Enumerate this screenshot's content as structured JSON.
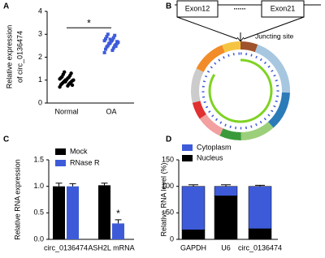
{
  "chart_data": [
    {
      "panel": "A",
      "type": "strip",
      "ylabel": [
        "Relative expression",
        "of circ_0136474"
      ],
      "categories": [
        "Normal",
        "OA"
      ],
      "colors": [
        "#000000",
        "#3d5bd9"
      ],
      "values": [
        [
          0.7,
          0.75,
          0.8,
          0.82,
          0.85,
          0.88,
          0.9,
          0.92,
          0.95,
          0.97,
          1.0,
          1.0,
          1.02,
          1.05,
          1.08,
          1.1,
          1.12,
          1.15,
          1.2,
          1.25,
          1.3,
          1.35,
          0.78,
          0.93
        ],
        [
          2.2,
          2.3,
          2.35,
          2.4,
          2.45,
          2.5,
          2.5,
          2.55,
          2.6,
          2.6,
          2.62,
          2.65,
          2.7,
          2.72,
          2.75,
          2.8,
          2.85,
          2.9,
          2.95,
          3.0,
          2.48,
          2.58,
          2.68,
          2.78
        ]
      ],
      "significance": "*",
      "ylim": [
        0,
        4
      ],
      "yticks": [
        0,
        1,
        2,
        3,
        4
      ]
    },
    {
      "panel": "C",
      "type": "grouped_bar",
      "ylabel": "Relative RNA expression",
      "categories": [
        "circ_0136474",
        "ASH2L mRNA"
      ],
      "series": [
        {
          "name": "Mock",
          "color": "#000000",
          "values": [
            1.0,
            1.02
          ],
          "errors": [
            0.06,
            0.04
          ]
        },
        {
          "name": "RNase R",
          "color": "#3d5bd9",
          "values": [
            1.0,
            0.3
          ],
          "errors": [
            0.05,
            0.07
          ]
        }
      ],
      "significance": "*",
      "ylim": [
        0,
        1.5
      ],
      "yticks": [
        {
          "value": 0,
          "label": "0.0"
        },
        {
          "value": 0.5,
          "label": "0.5"
        },
        {
          "value": 1,
          "label": "1.0"
        },
        {
          "value": 1.5,
          "label": "1.5"
        }
      ]
    },
    {
      "panel": "D",
      "type": "stacked_bar",
      "ylabel": "Relative RNA level (%)",
      "categories": [
        "GAPDH",
        "U6",
        "circ_0136474"
      ],
      "series": [
        {
          "name": "Nucleus",
          "color": "#000000",
          "values": [
            18,
            82,
            20
          ],
          "errors": [
            4,
            3,
            2
          ]
        },
        {
          "name": "Cytoplasm",
          "color": "#3d5bd9",
          "values": [
            82,
            18,
            80
          ],
          "errors": [
            3,
            3,
            2
          ]
        }
      ],
      "ylim": [
        0,
        150
      ],
      "yticks": [
        0,
        50,
        100,
        150
      ]
    }
  ],
  "diagram": {
    "panel": "B",
    "exons": [
      "Exon12",
      "Exon21"
    ],
    "dots": "......",
    "annotation": "Juncting site"
  }
}
